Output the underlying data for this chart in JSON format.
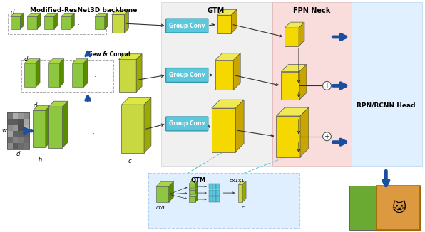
{
  "title": "Modified-ResNet3D backbone",
  "gtm_label": "GTM",
  "fpn_label": "FPN Neck",
  "rpn_label": "RPN/RCNN Head",
  "group_conv_label": "Group Conv",
  "view_concat_label": "View & Concat",
  "qtm_label": "QTM",
  "cxd_label": "cxd",
  "dx1x1_label": "dx1x1",
  "c_label": "c",
  "bg_gtm": "#eeeeee",
  "bg_fpn": "#f8d8d8",
  "bg_rpn": "#dceeff",
  "bg_qtm": "#dceeff",
  "cube_face": "#8dc63f",
  "cube_top": "#a8d840",
  "cube_side": "#5a8c00",
  "slab_face": "#c8d840",
  "slab_top": "#dde840",
  "slab_side": "#9aaa00",
  "yellow_face": "#f5d800",
  "yellow_top": "#f0e855",
  "yellow_side": "#c8a500",
  "group_conv_bg": "#5bc8dc",
  "arrow_color": "#1a4fa0",
  "thin_stripe_color": "#5bc8dc",
  "dot_color": "#666666"
}
